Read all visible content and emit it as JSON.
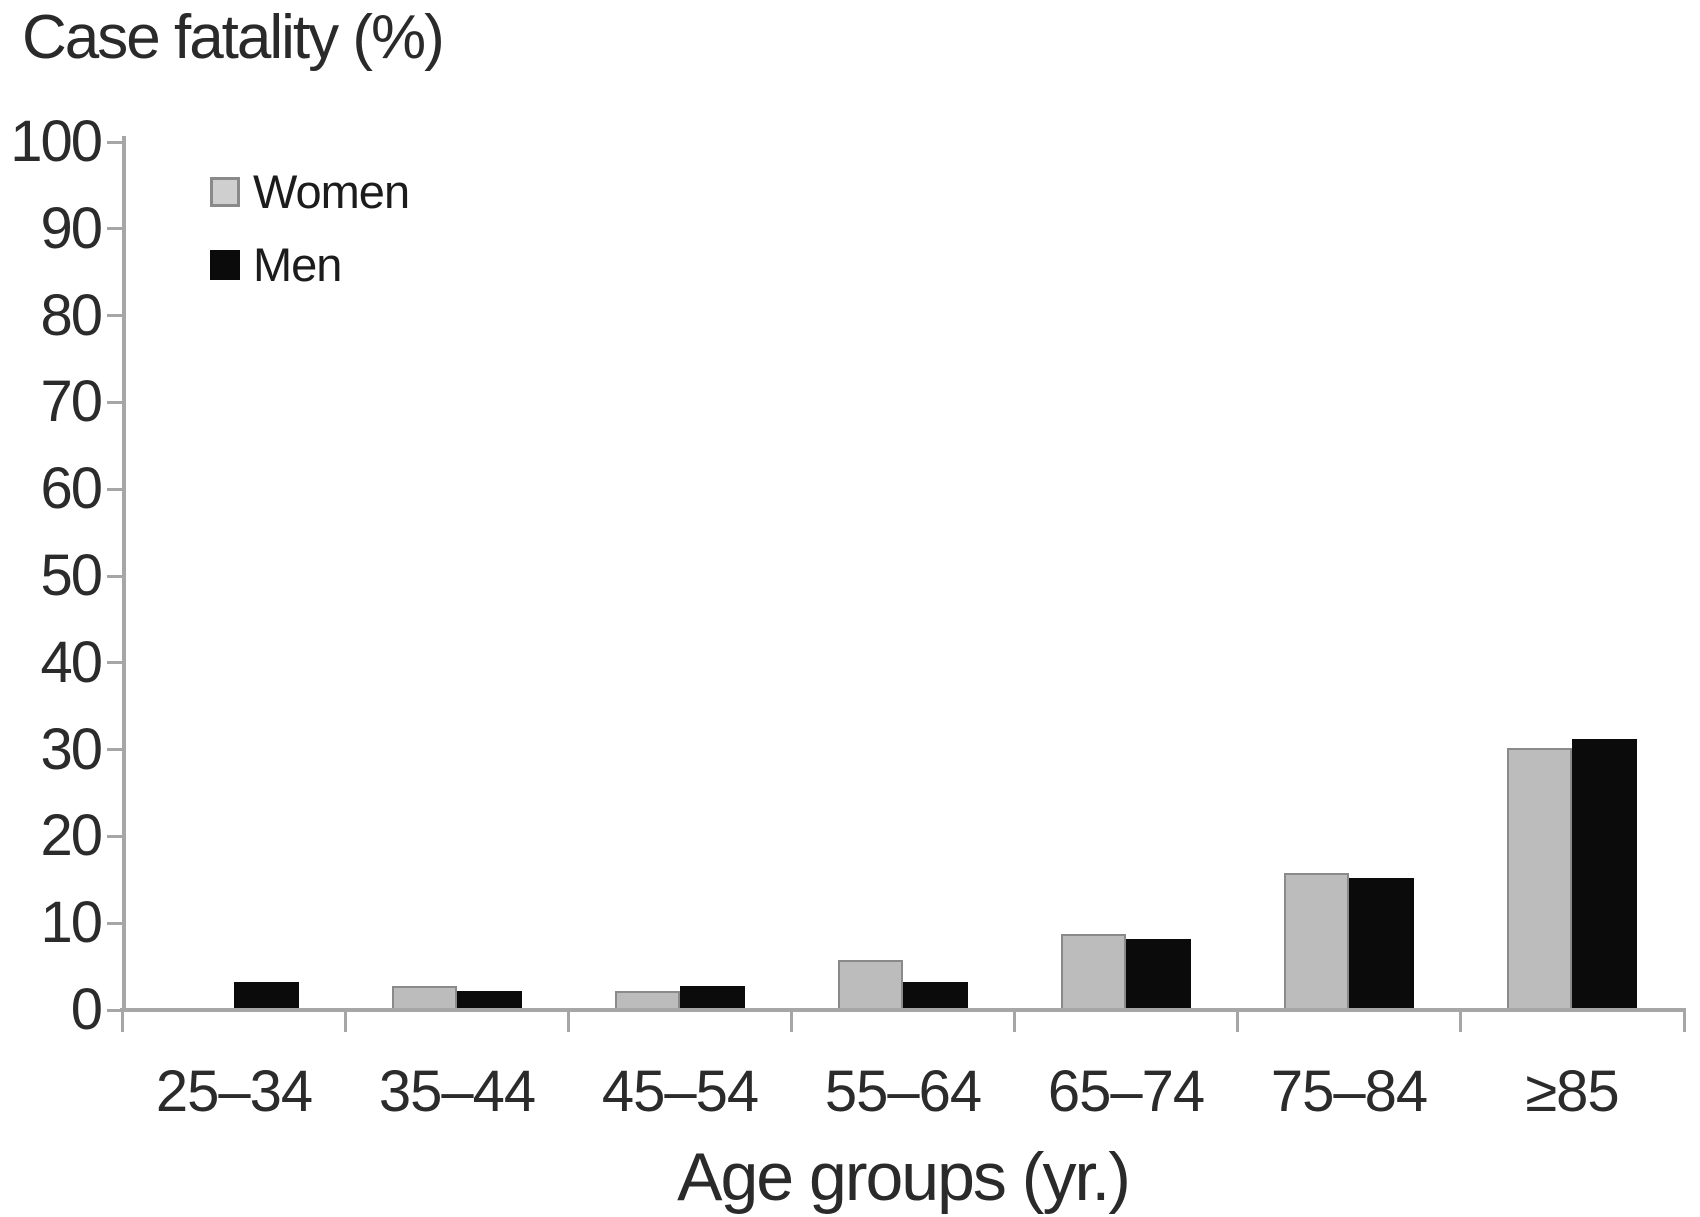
{
  "figure": {
    "title": "Case fatality (%)",
    "x_axis_title": "Age groups (yr.)"
  },
  "chart_data": {
    "type": "bar",
    "title": "Case fatality (%)",
    "xlabel": "Age groups (yr.)",
    "ylabel": "Case fatality (%)",
    "categories": [
      "25–34",
      "35–44",
      "45–54",
      "55–64",
      "65–74",
      "75–84",
      "≥85"
    ],
    "series": [
      {
        "name": "Women",
        "color": "#bcbcbc",
        "border_color": "#8a8a8a",
        "values": [
          0,
          2.5,
          2,
          5.5,
          8.5,
          15.5,
          30
        ]
      },
      {
        "name": "Men",
        "color": "#0b0b0b",
        "border_color": "#0b0b0b",
        "values": [
          3,
          2,
          2.5,
          3,
          8,
          15,
          31
        ]
      }
    ],
    "ylim": [
      0,
      100
    ],
    "yticks": [
      0,
      10,
      20,
      30,
      40,
      50,
      60,
      70,
      80,
      90,
      100
    ],
    "grid": false,
    "legend_position": "upper-left-inside",
    "axis_color": "#a6a6a6",
    "text_color": "#2b2b2b",
    "background_color": "#ffffff"
  }
}
